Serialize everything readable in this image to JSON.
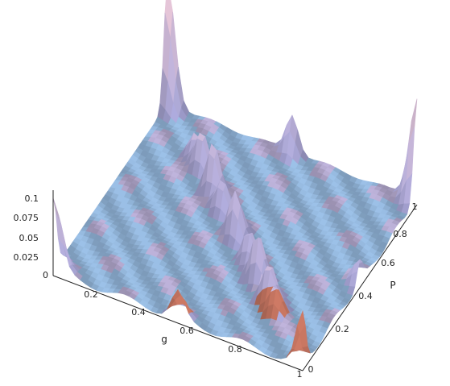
{
  "chart_data": {
    "type": "surface",
    "title": "",
    "xlabel": "g",
    "ylabel": "P",
    "zlabel": "",
    "xlim": [
      0,
      1
    ],
    "ylim": [
      0,
      1
    ],
    "zlim": [
      0,
      0.1
    ],
    "x_ticks": [
      "0.2",
      "0.4",
      "0.6",
      "0.8",
      "1"
    ],
    "y_ticks": [
      "0",
      "0.2",
      "0.4",
      "0.6",
      "0.8",
      "1"
    ],
    "z_ticks": [
      "0",
      "0.025",
      "0.05",
      "0.075",
      "0.1"
    ],
    "grid": false,
    "legend": "none",
    "surface_colors": {
      "high": "#e8c7d8",
      "mid": "#a9a9de",
      "low": "#8fd9f2",
      "peak_warm": "#c5603f"
    },
    "approx_peaks": [
      {
        "g": 0.0,
        "p": 1.0,
        "z": 0.145
      },
      {
        "g": 1.0,
        "p": 0.0,
        "z": 0.06
      },
      {
        "g": 0.0,
        "p": 0.0,
        "z": 0.085
      },
      {
        "g": 1.0,
        "p": 1.0,
        "z": 0.12
      },
      {
        "g": 0.5,
        "p": 1.0,
        "z": 0.045
      },
      {
        "g": 0.333,
        "p": 0.667,
        "z": 0.06
      },
      {
        "g": 0.667,
        "p": 0.333,
        "z": 0.055
      },
      {
        "g": 0.5,
        "p": 0.5,
        "z": 0.05
      },
      {
        "g": 0.25,
        "p": 0.75,
        "z": 0.045
      },
      {
        "g": 0.75,
        "p": 0.25,
        "z": 0.04
      },
      {
        "g": 0.4,
        "p": 0.6,
        "z": 0.035
      },
      {
        "g": 0.6,
        "p": 0.4,
        "z": 0.035
      },
      {
        "g": 0.2,
        "p": 0.8,
        "z": 0.03
      },
      {
        "g": 0.8,
        "p": 0.2,
        "z": 0.03
      },
      {
        "g": 0.5,
        "p": 0.0,
        "z": 0.03
      },
      {
        "g": 1.0,
        "p": 0.5,
        "z": 0.025
      }
    ]
  }
}
